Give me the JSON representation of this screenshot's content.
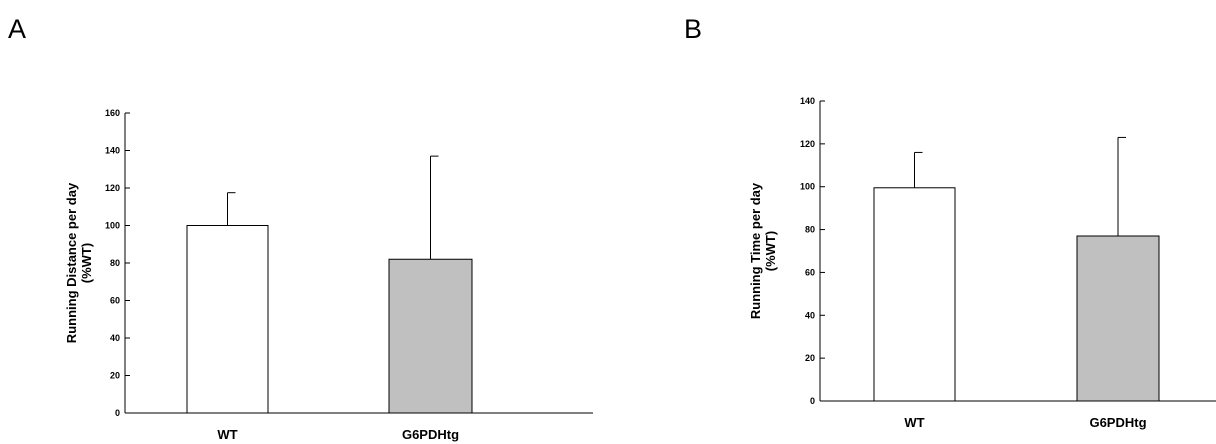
{
  "panels": {
    "a": {
      "letter": "A"
    },
    "b": {
      "letter": "B"
    }
  },
  "chart_data": [
    {
      "type": "bar",
      "categories": [
        "WT",
        "G6PDHtg"
      ],
      "values": [
        100,
        82
      ],
      "error_upper": [
        117.5,
        137
      ],
      "ylabel_lines": [
        "Running Distance per day",
        "(%WT)"
      ],
      "ylim": [
        0,
        160
      ],
      "yticks": [
        0,
        20,
        40,
        60,
        80,
        100,
        120,
        140,
        160
      ],
      "bar_colors": [
        "#ffffff",
        "#c0c0c0"
      ],
      "grid": false,
      "legend": "none"
    },
    {
      "type": "bar",
      "categories": [
        "WT",
        "G6PDHtg"
      ],
      "values": [
        99.5,
        77
      ],
      "error_upper": [
        116,
        123
      ],
      "ylabel_lines": [
        "Running Time per day",
        "(%WT)"
      ],
      "ylim": [
        0,
        140
      ],
      "yticks": [
        0,
        20,
        40,
        60,
        80,
        100,
        120,
        140
      ],
      "bar_colors": [
        "#ffffff",
        "#c0c0c0"
      ],
      "grid": false,
      "legend": "none"
    }
  ]
}
